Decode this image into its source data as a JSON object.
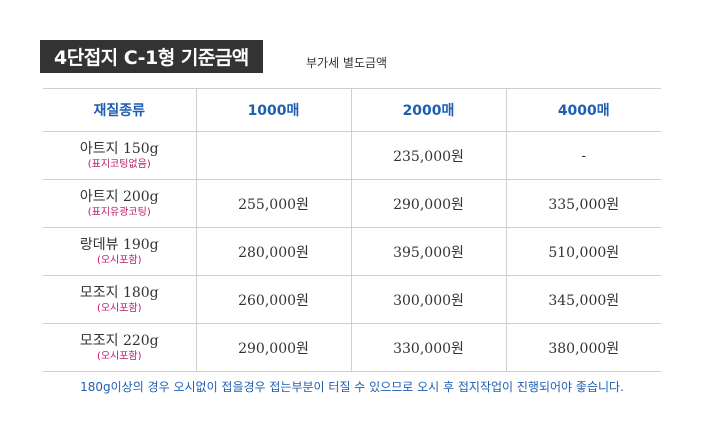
{
  "title": "4단접지 C-1형 기준금액",
  "vat_note": "부가세 별도금액",
  "table": {
    "headers": [
      "재질종류",
      "1000매",
      "2000매",
      "4000매"
    ],
    "rows": [
      {
        "name": "아트지 150g",
        "sub": "(표지코팅없음)",
        "prices": [
          "",
          "235,000원",
          "-"
        ]
      },
      {
        "name": "아트지 200g",
        "sub": "(표지유광코팅)",
        "prices": [
          "255,000원",
          "290,000원",
          "335,000원"
        ]
      },
      {
        "name": "랑데뷰 190g",
        "sub": "(오시포함)",
        "prices": [
          "280,000원",
          "395,000원",
          "510,000원"
        ]
      },
      {
        "name": "모조지 180g",
        "sub": "(오시포함)",
        "prices": [
          "260,000원",
          "300,000원",
          "345,000원"
        ]
      },
      {
        "name": "모조지 220g",
        "sub": "(오시포함)",
        "prices": [
          "290,000원",
          "330,000원",
          "380,000원"
        ]
      }
    ]
  },
  "footnote": "180g이상의 경우 오시없이 접을경우 접는부분이 터질 수 있으므로 오시 후 접지작업이 진행되어야 좋습니다.",
  "colors": {
    "title_bg": "#333333",
    "header_text": "#1e5fb4",
    "sub_text": "#c0186e",
    "footnote_text": "#1e5fb4"
  }
}
